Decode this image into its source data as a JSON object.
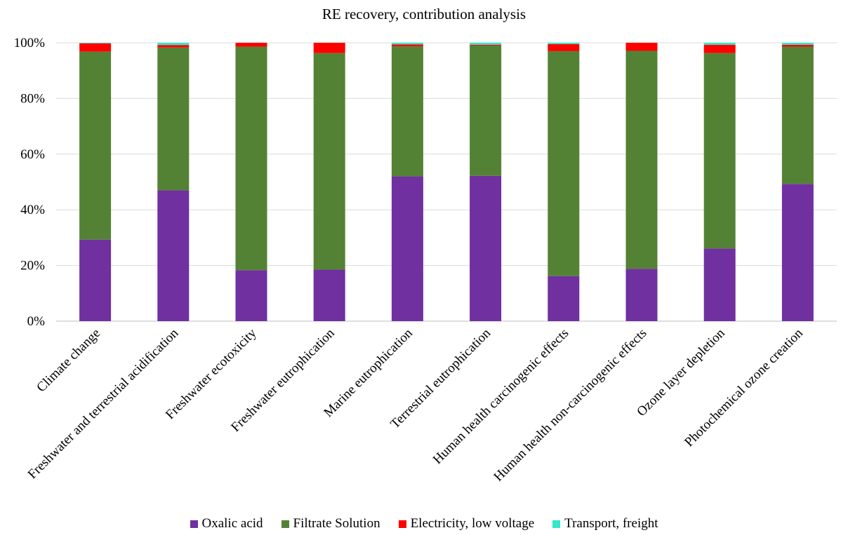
{
  "chart_data": {
    "type": "bar",
    "stacked": true,
    "percent": true,
    "title": "RE recovery, contribution analysis",
    "xlabel": "",
    "ylabel": "",
    "ylim": [
      0,
      100
    ],
    "y_ticks": [
      "0%",
      "20%",
      "40%",
      "60%",
      "80%",
      "100%"
    ],
    "grid": true,
    "legend_position": "bottom",
    "categories": [
      "Climate change",
      "Freshwater and terrestrial acidification",
      "Freshwater ecotoxicity",
      "Freshwater eutrophication",
      "Marine eutrophication",
      "Terrestrial eutrophication",
      "Human health carcinogenic effects",
      "Human health non-carcinogenic effects",
      "Ozone layer depletion",
      "Photochemical ozone creation"
    ],
    "series": [
      {
        "name": "Oxalic acid",
        "color": "#7030A0",
        "values": [
          29.3,
          47.0,
          18.3,
          18.5,
          52.0,
          52.2,
          16.2,
          18.8,
          26.1,
          49.3
        ]
      },
      {
        "name": "Filtrate Solution",
        "color": "#548235",
        "values": [
          67.5,
          51.3,
          80.3,
          77.8,
          46.7,
          46.8,
          80.8,
          78.3,
          70.2,
          49.3
        ]
      },
      {
        "name": "Electricity, low voltage",
        "color": "#FF0000",
        "values": [
          3.0,
          0.9,
          1.4,
          3.7,
          0.7,
          0.3,
          2.5,
          2.9,
          3.0,
          0.7
        ]
      },
      {
        "name": "Transport, freight",
        "color": "#33E6CC",
        "values": [
          0.2,
          0.8,
          0.0,
          0.0,
          0.6,
          0.7,
          0.5,
          0.0,
          0.7,
          0.7
        ]
      }
    ]
  }
}
